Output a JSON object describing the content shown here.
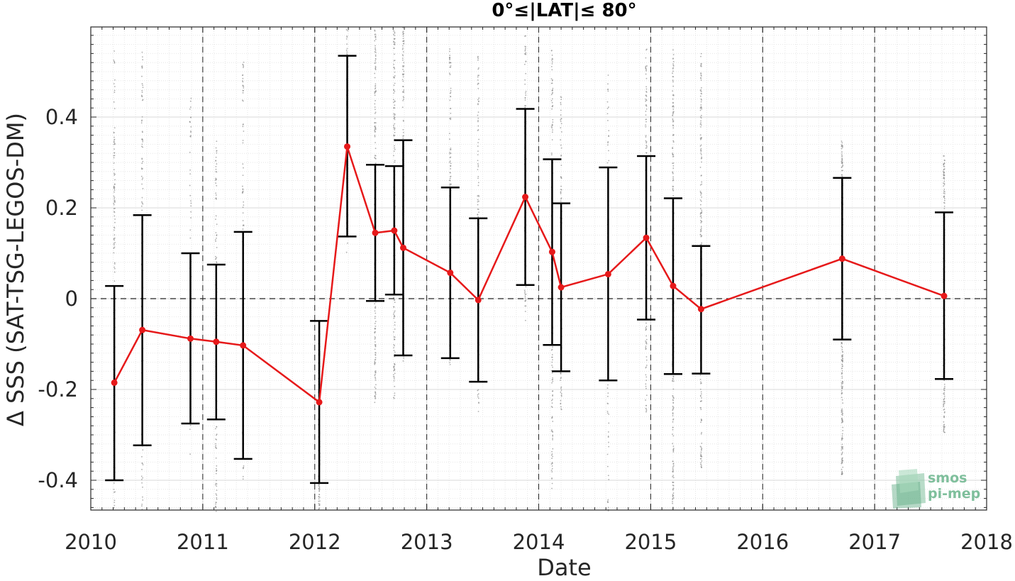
{
  "chart_data": {
    "type": "line",
    "title": "0°≤|LAT|≤ 80°",
    "xlabel": "Date",
    "ylabel": "Δ SSS (SAT-TSG-LEGOS-DM)",
    "xlim": [
      2010,
      2018
    ],
    "ylim": [
      -0.47,
      0.6
    ],
    "x_ticks": [
      "2010",
      "2011",
      "2012",
      "2013",
      "2014",
      "2015",
      "2016",
      "2017",
      "2018"
    ],
    "y_ticks": [
      "-0.4",
      "-0.2",
      "0",
      "0.2",
      "0.4"
    ],
    "y_tick_values": [
      -0.4,
      -0.2,
      0,
      0.2,
      0.4
    ],
    "grid": true,
    "zero_line": "dashed",
    "year_lines": "dashed",
    "series": [
      {
        "style": "red line with markers and black error bars",
        "color": "#e6191a",
        "points": [
          {
            "x": 2010.21,
            "y": -0.185,
            "low": -0.4,
            "high": 0.028
          },
          {
            "x": 2010.46,
            "y": -0.069,
            "low": -0.323,
            "high": 0.184
          },
          {
            "x": 2010.89,
            "y": -0.088,
            "low": -0.275,
            "high": 0.1
          },
          {
            "x": 2011.12,
            "y": -0.095,
            "low": -0.266,
            "high": 0.075
          },
          {
            "x": 2011.36,
            "y": -0.103,
            "low": -0.353,
            "high": 0.147
          },
          {
            "x": 2012.04,
            "y": -0.228,
            "low": -0.406,
            "high": -0.049
          },
          {
            "x": 2012.29,
            "y": 0.335,
            "low": 0.137,
            "high": 0.535
          },
          {
            "x": 2012.54,
            "y": 0.145,
            "low": -0.005,
            "high": 0.295
          },
          {
            "x": 2012.71,
            "y": 0.15,
            "low": 0.009,
            "high": 0.292
          },
          {
            "x": 2012.79,
            "y": 0.112,
            "low": -0.125,
            "high": 0.349
          },
          {
            "x": 2013.21,
            "y": 0.057,
            "low": -0.131,
            "high": 0.245
          },
          {
            "x": 2013.46,
            "y": -0.003,
            "low": -0.183,
            "high": 0.177
          },
          {
            "x": 2013.88,
            "y": 0.224,
            "low": 0.03,
            "high": 0.418
          },
          {
            "x": 2014.12,
            "y": 0.103,
            "low": -0.102,
            "high": 0.307
          },
          {
            "x": 2014.2,
            "y": 0.025,
            "low": -0.16,
            "high": 0.21
          },
          {
            "x": 2014.62,
            "y": 0.054,
            "low": -0.18,
            "high": 0.289
          },
          {
            "x": 2014.96,
            "y": 0.134,
            "low": -0.046,
            "high": 0.314
          },
          {
            "x": 2015.2,
            "y": 0.028,
            "low": -0.166,
            "high": 0.221
          },
          {
            "x": 2015.45,
            "y": -0.023,
            "low": -0.165,
            "high": 0.116
          },
          {
            "x": 2016.71,
            "y": 0.088,
            "low": -0.09,
            "high": 0.266
          },
          {
            "x": 2017.62,
            "y": 0.006,
            "low": -0.177,
            "high": 0.19
          }
        ]
      }
    ],
    "scatter_background": {
      "color": "#8c8c8c",
      "description": "vertical clusters of grey individual match-up differences at each campaign date",
      "clusters": [
        {
          "x": 2010.21,
          "ymin": -0.47,
          "ymax": 0.55,
          "density": 0.6
        },
        {
          "x": 2010.46,
          "ymin": -0.47,
          "ymax": 0.55,
          "density": 0.5
        },
        {
          "x": 2010.89,
          "ymin": -0.35,
          "ymax": 0.45,
          "density": 0.2
        },
        {
          "x": 2011.12,
          "ymin": -0.47,
          "ymax": 0.35,
          "density": 0.5
        },
        {
          "x": 2011.36,
          "ymin": -0.4,
          "ymax": 0.55,
          "density": 0.4
        },
        {
          "x": 2012.04,
          "ymin": -0.47,
          "ymax": -0.05,
          "density": 0.6
        },
        {
          "x": 2012.29,
          "ymin": 0.1,
          "ymax": 0.6,
          "density": 0.3
        },
        {
          "x": 2012.54,
          "ymin": -0.23,
          "ymax": 0.6,
          "density": 0.8
        },
        {
          "x": 2012.71,
          "ymin": -0.22,
          "ymax": 0.6,
          "density": 0.7
        },
        {
          "x": 2012.79,
          "ymin": -0.15,
          "ymax": 0.6,
          "density": 0.5
        },
        {
          "x": 2013.21,
          "ymin": -0.15,
          "ymax": 0.55,
          "density": 0.5
        },
        {
          "x": 2013.46,
          "ymin": -0.25,
          "ymax": 0.55,
          "density": 0.5
        },
        {
          "x": 2013.88,
          "ymin": -0.05,
          "ymax": 0.58,
          "density": 0.5
        },
        {
          "x": 2014.12,
          "ymin": -0.42,
          "ymax": 0.55,
          "density": 0.6
        },
        {
          "x": 2014.2,
          "ymin": -0.25,
          "ymax": 0.45,
          "density": 0.4
        },
        {
          "x": 2014.62,
          "ymin": -0.47,
          "ymax": 0.5,
          "density": 0.3
        },
        {
          "x": 2014.96,
          "ymin": -0.25,
          "ymax": 0.55,
          "density": 0.5
        },
        {
          "x": 2015.2,
          "ymin": -0.47,
          "ymax": 0.55,
          "density": 0.9
        },
        {
          "x": 2015.45,
          "ymin": -0.38,
          "ymax": 0.55,
          "density": 0.8
        },
        {
          "x": 2016.71,
          "ymin": -0.39,
          "ymax": 0.35,
          "density": 1.0
        },
        {
          "x": 2017.62,
          "ymin": -0.3,
          "ymax": 0.32,
          "density": 0.8
        }
      ]
    }
  },
  "logo": {
    "line1": "smos",
    "line2": "pi-mep",
    "color": "#7fbf9c"
  }
}
